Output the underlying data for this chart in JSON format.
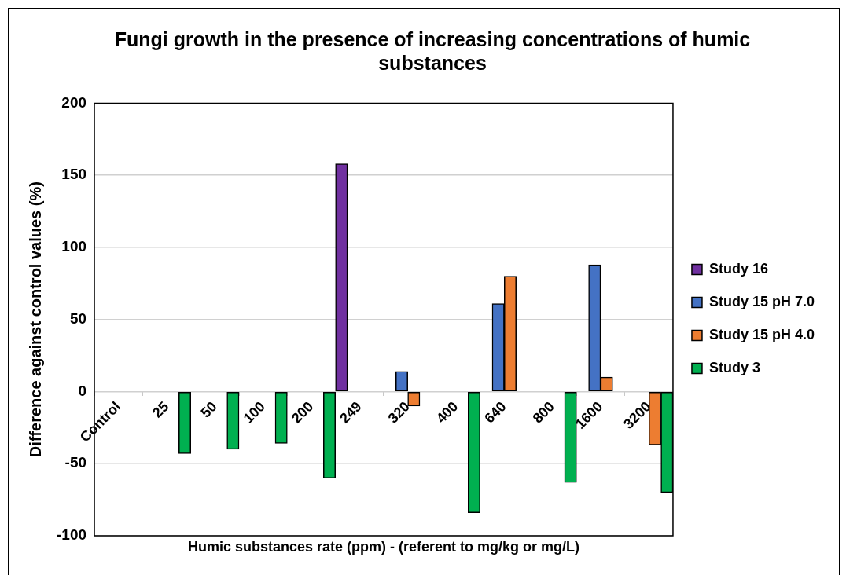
{
  "chart_data": {
    "type": "bar",
    "title": "Fungi growth in the presence of increasing concentrations of humic substances",
    "xlabel": "Humic substances rate (ppm) - (referent to mg/kg or mg/L)",
    "ylabel": "Difference against control values (%)",
    "categories": [
      "Control",
      "25",
      "50",
      "100",
      "200",
      "249",
      "320",
      "400",
      "640",
      "800",
      "1600",
      "3200"
    ],
    "series": [
      {
        "name": "Study 16",
        "color": "#7030a0",
        "values": [
          null,
          null,
          null,
          null,
          null,
          158,
          null,
          null,
          null,
          null,
          null,
          null
        ]
      },
      {
        "name": "Study 15 pH 7.0",
        "color": "#4472c4",
        "values": [
          null,
          null,
          null,
          null,
          null,
          null,
          14,
          null,
          61,
          null,
          88,
          null
        ]
      },
      {
        "name": "Study 15 pH 4.0",
        "color": "#ed7d31",
        "values": [
          null,
          null,
          null,
          null,
          null,
          null,
          -10,
          null,
          80,
          null,
          10,
          -37
        ]
      },
      {
        "name": "Study 3",
        "color": "#00b050",
        "values": [
          null,
          -43,
          -40,
          -36,
          -60,
          null,
          null,
          -84,
          null,
          -63,
          null,
          -70
        ]
      }
    ],
    "ylim": [
      -100,
      200
    ],
    "yticks": [
      -100,
      -50,
      0,
      50,
      100,
      150,
      200
    ],
    "grid": "y",
    "legend": "right"
  }
}
